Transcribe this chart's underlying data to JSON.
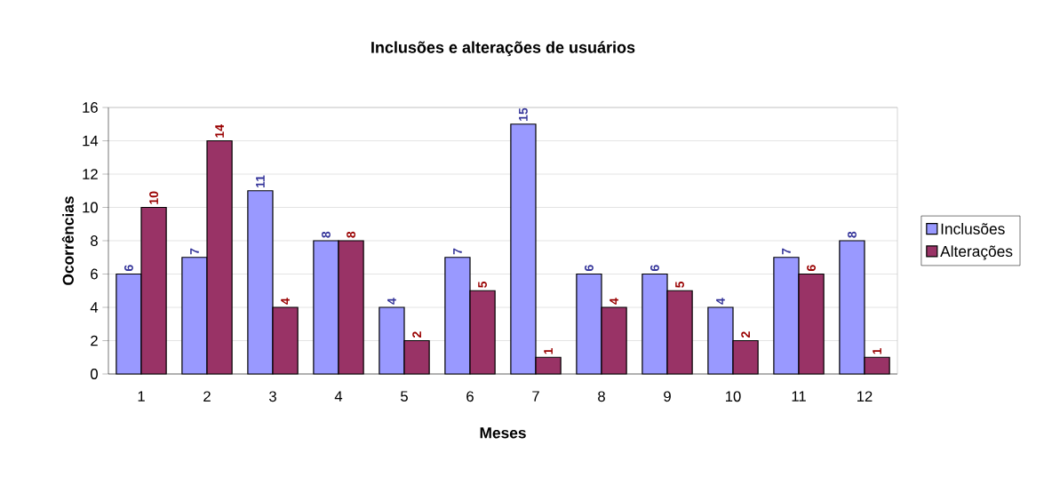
{
  "chart_data": {
    "type": "bar",
    "title": "Inclusões e alterações de usuários",
    "xlabel": "Meses",
    "ylabel": "Ocorrências",
    "categories": [
      "1",
      "2",
      "3",
      "4",
      "5",
      "6",
      "7",
      "8",
      "9",
      "10",
      "11",
      "12"
    ],
    "series": [
      {
        "name": "Inclusões",
        "color": "#9999ff",
        "values": [
          6,
          7,
          11,
          8,
          4,
          7,
          15,
          6,
          6,
          4,
          7,
          8
        ]
      },
      {
        "name": "Alterações",
        "color": "#993366",
        "values": [
          10,
          14,
          4,
          8,
          2,
          5,
          1,
          4,
          5,
          2,
          6,
          1
        ]
      }
    ],
    "ylim": [
      0,
      16
    ],
    "yticks": [
      0,
      2,
      4,
      6,
      8,
      10,
      12,
      14,
      16
    ],
    "grid": "y",
    "legend": "right",
    "data_labels": true
  }
}
